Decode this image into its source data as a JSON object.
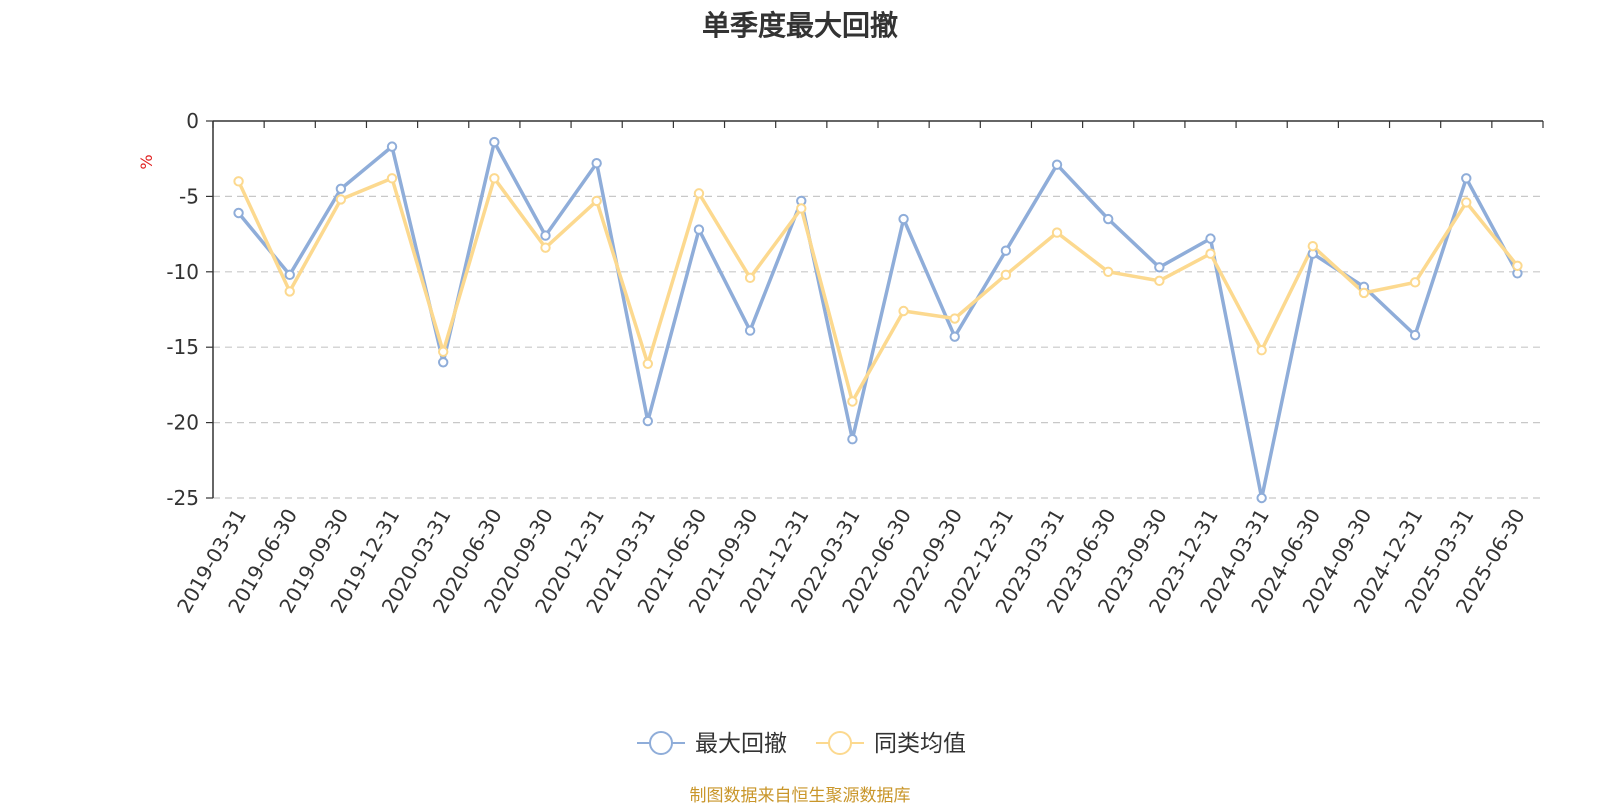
{
  "chart_data": {
    "type": "line",
    "title": "单季度最大回撤",
    "ylabel": "%",
    "xlabel": "",
    "ylim": [
      -25,
      0
    ],
    "yticks": [
      0,
      -5,
      -10,
      -15,
      -20,
      -25
    ],
    "grid": true,
    "legend_position": "bottom-center",
    "categories": [
      "2019-03-31",
      "2019-06-30",
      "2019-09-30",
      "2019-12-31",
      "2020-03-31",
      "2020-06-30",
      "2020-09-30",
      "2020-12-31",
      "2021-03-31",
      "2021-06-30",
      "2021-09-30",
      "2021-12-31",
      "2022-03-31",
      "2022-06-30",
      "2022-09-30",
      "2022-12-31",
      "2023-03-31",
      "2023-06-30",
      "2023-09-30",
      "2023-12-31",
      "2024-03-31",
      "2024-06-30",
      "2024-09-30",
      "2024-12-31",
      "2025-03-31",
      "2025-06-30"
    ],
    "series": [
      {
        "name": "最大回撤",
        "color": "#8fadd9",
        "values": [
          -6.1,
          -10.2,
          -4.5,
          -1.7,
          -16.0,
          -1.4,
          -7.6,
          -2.8,
          -19.9,
          -7.2,
          -13.9,
          -5.3,
          -21.1,
          -6.5,
          -14.3,
          -8.6,
          -2.9,
          -6.5,
          -9.7,
          -7.8,
          -25.0,
          -8.8,
          -11.0,
          -14.2,
          -3.8,
          -10.1
        ]
      },
      {
        "name": "同类均值",
        "color": "#fcd98f",
        "values": [
          -4.0,
          -11.3,
          -5.2,
          -3.8,
          -15.3,
          -3.8,
          -8.4,
          -5.3,
          -16.1,
          -4.8,
          -10.4,
          -5.8,
          -18.6,
          -12.6,
          -13.1,
          -10.2,
          -7.4,
          -10.0,
          -10.6,
          -8.8,
          -15.2,
          -8.3,
          -11.4,
          -10.7,
          -5.4,
          -9.6
        ]
      }
    ]
  },
  "footer": {
    "source": "制图数据来自恒生聚源数据库"
  }
}
